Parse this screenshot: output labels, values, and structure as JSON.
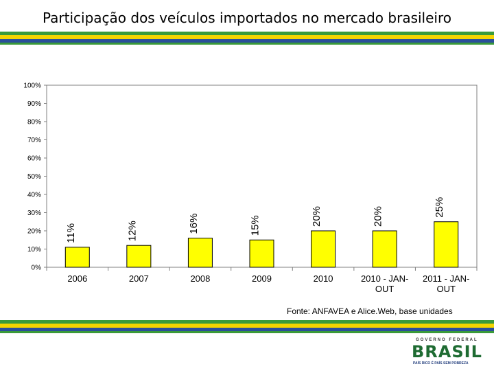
{
  "title": "Participação dos veículos importados no mercado brasileiro",
  "source": "Fonte: ANFAVEA e Alice.Web, base unidades",
  "logo": {
    "top_text": "GOVERNO FEDERAL",
    "main_text": "BRASIL",
    "slogan": "PAÍS RICO É PAÍS SEM POBREZA"
  },
  "colors": {
    "bar_fill": "#ffff00",
    "bar_stroke": "#000000",
    "stripe_green": "#3a9a3a",
    "stripe_yellow": "#f3d400",
    "stripe_blue": "#2a4f9a"
  },
  "chart_data": {
    "type": "bar",
    "title": "",
    "xlabel": "",
    "ylabel": "",
    "ylim": [
      0,
      100
    ],
    "yticks": [
      "0%",
      "10%",
      "20%",
      "30%",
      "40%",
      "50%",
      "60%",
      "70%",
      "80%",
      "90%",
      "100%"
    ],
    "categories": [
      [
        "2006"
      ],
      [
        "2007"
      ],
      [
        "2008"
      ],
      [
        "2009"
      ],
      [
        "2010"
      ],
      [
        "2010 - JAN-",
        "OUT"
      ],
      [
        "2011 - JAN-",
        "OUT"
      ]
    ],
    "values": [
      11,
      12,
      16,
      15,
      20,
      20,
      25
    ],
    "data_labels": [
      "11%",
      "12%",
      "16%",
      "15%",
      "20%",
      "20%",
      "25%"
    ],
    "grid": false
  }
}
